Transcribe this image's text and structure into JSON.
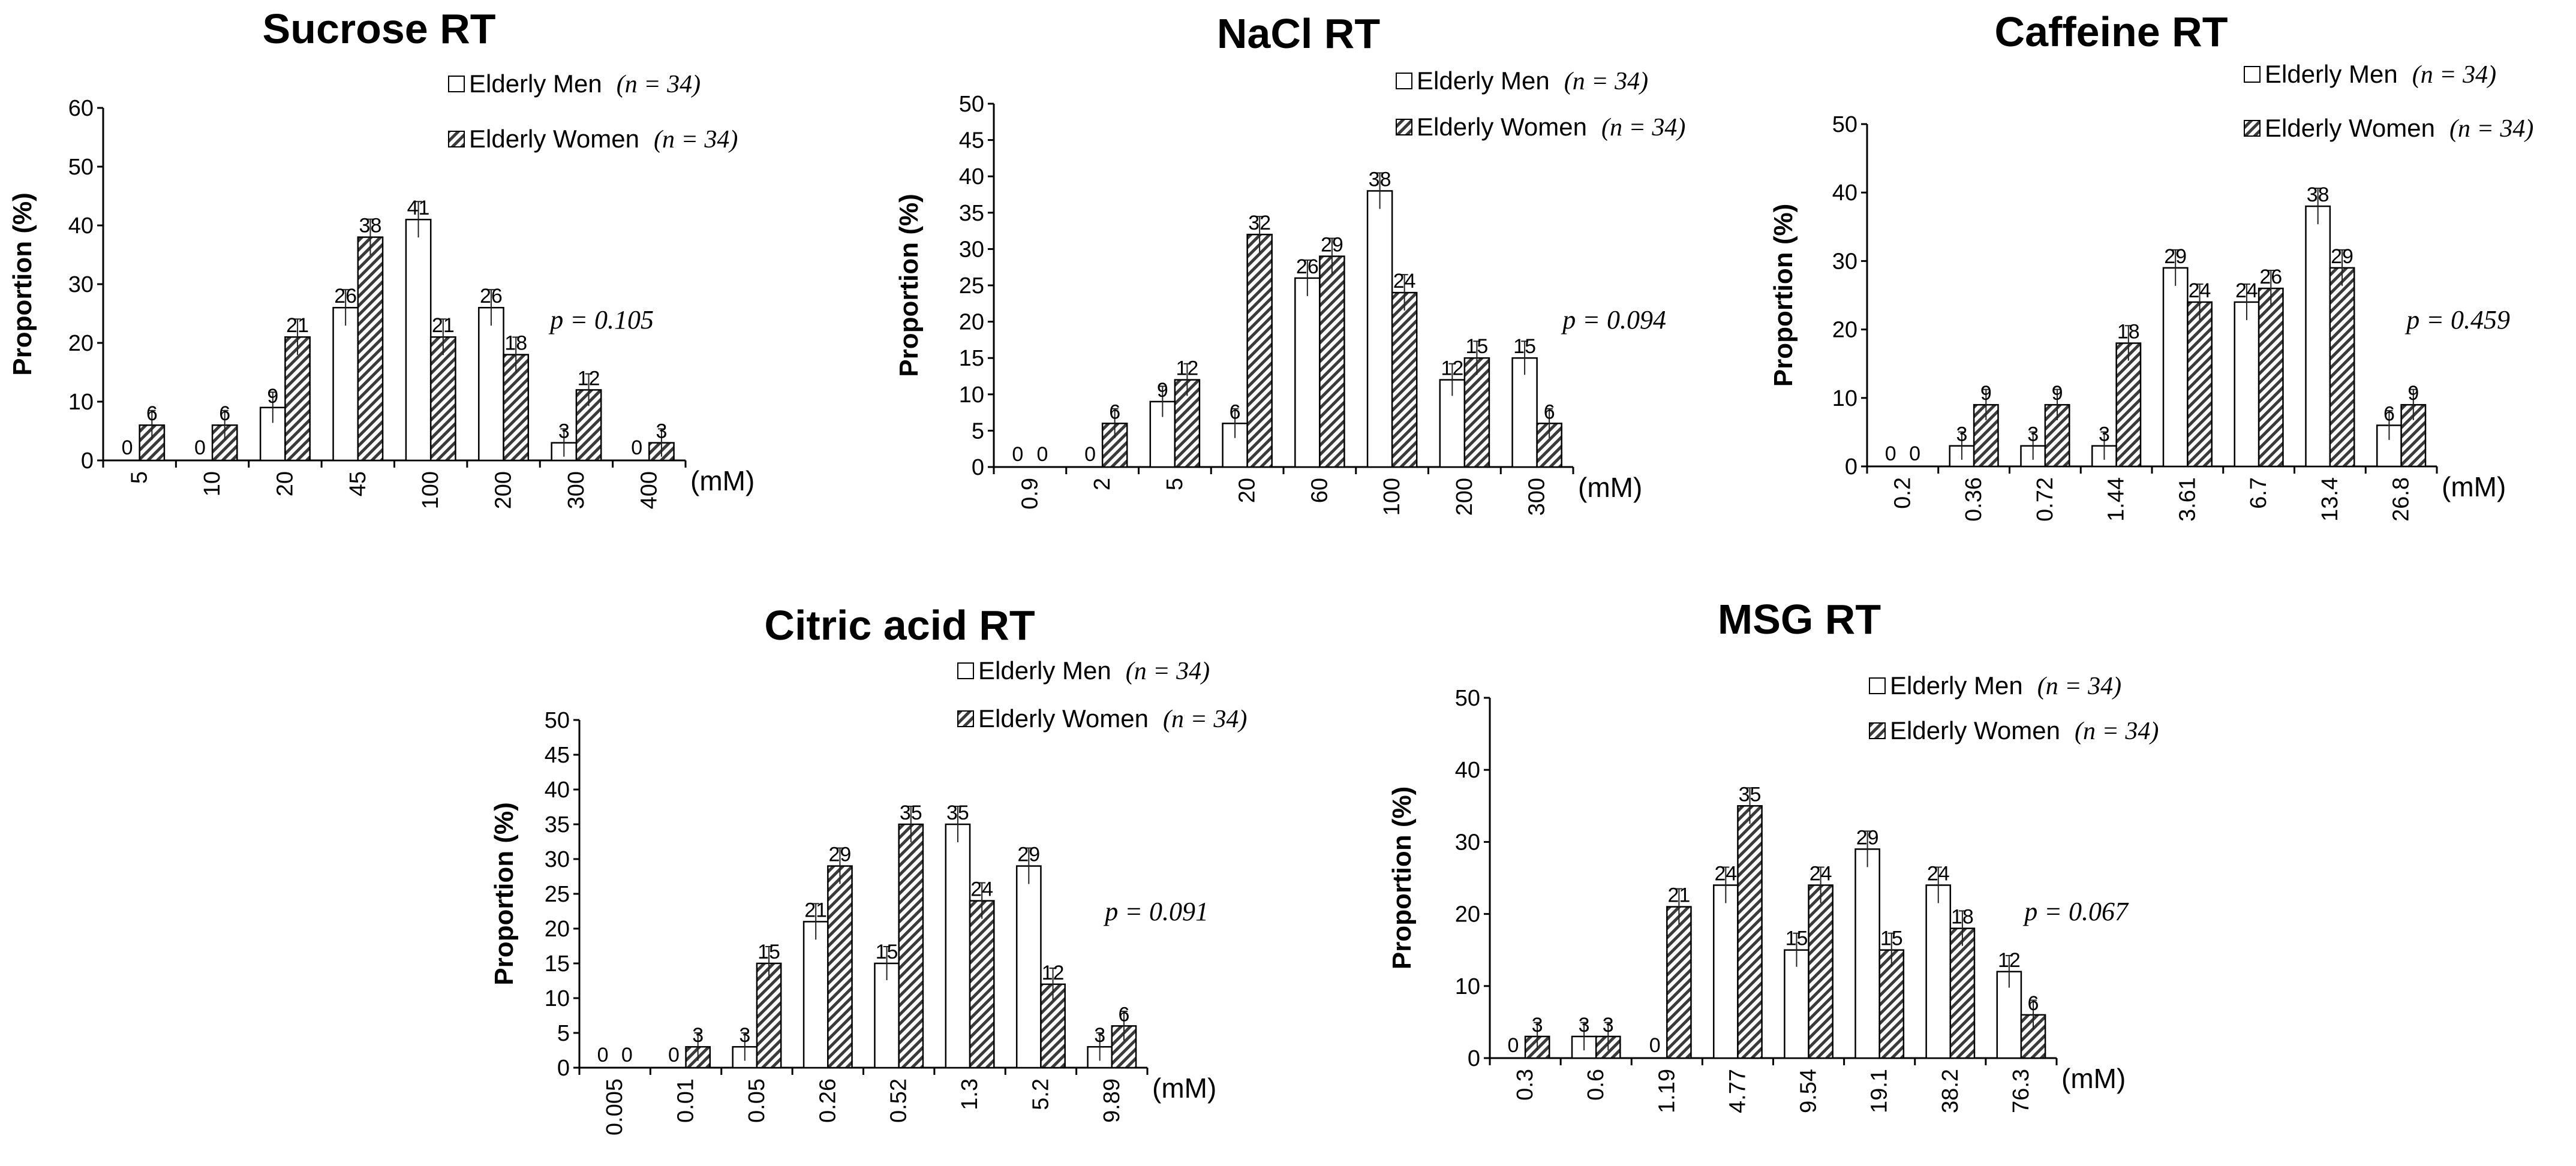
{
  "chart_data": [
    {
      "type": "bar",
      "title": "Sucrose RT",
      "ylabel": "Proportion (%)",
      "unit": "(mM)",
      "ylim": [
        0,
        60
      ],
      "yticks": [
        0,
        10,
        20,
        30,
        40,
        50,
        60
      ],
      "yticklabels": [
        "0",
        "10",
        "20",
        "30",
        "40",
        "50",
        "60"
      ],
      "categories": [
        "5",
        "10",
        "20",
        "45",
        "100",
        "200",
        "300",
        "400"
      ],
      "series": [
        {
          "name": "Elderly Men",
          "n": "(n = 34)",
          "values": [
            0,
            0,
            9,
            26,
            41,
            26,
            3,
            0
          ],
          "labels": [
            "0",
            "0",
            "9",
            "26",
            "41",
            "26",
            "3",
            "0"
          ]
        },
        {
          "name": "Elderly Women",
          "n": "(n = 34)",
          "values": [
            6,
            6,
            21,
            38,
            21,
            18,
            12,
            3
          ],
          "labels": [
            "6",
            "6",
            "21",
            "38",
            "21",
            "18",
            "12",
            "3"
          ]
        }
      ],
      "p_value": "p = 0.105"
    },
    {
      "type": "bar",
      "title": "NaCl RT",
      "ylabel": "Proportion (%)",
      "unit": "(mM)",
      "ylim": [
        0,
        50
      ],
      "yticks": [
        0,
        5,
        10,
        15,
        20,
        25,
        30,
        35,
        40,
        45,
        50
      ],
      "yticklabels": [
        "0",
        "5",
        "10",
        "15",
        "20",
        "25",
        "30",
        "35",
        "40",
        "45",
        "50"
      ],
      "categories": [
        "0.9",
        "2",
        "5",
        "20",
        "60",
        "100",
        "200",
        "300"
      ],
      "series": [
        {
          "name": "Elderly Men",
          "n": "(n = 34)",
          "values": [
            0,
            0,
            9,
            6,
            26,
            38,
            12,
            15
          ],
          "labels": [
            "0",
            "0",
            "9",
            "6",
            "26",
            "38",
            "12",
            "15"
          ]
        },
        {
          "name": "Elderly Women",
          "n": "(n = 34)",
          "values": [
            0,
            6,
            12,
            32,
            29,
            24,
            15,
            6
          ],
          "labels": [
            "0",
            "6",
            "12",
            "32",
            "29",
            "24",
            "15",
            "6"
          ]
        }
      ],
      "p_value": "p = 0.094"
    },
    {
      "type": "bar",
      "title": "Caffeine RT",
      "ylabel": "Proportion (%)",
      "unit": "(mM)",
      "ylim": [
        0,
        50
      ],
      "yticks": [
        0,
        10,
        20,
        30,
        40,
        50
      ],
      "yticklabels": [
        "0",
        "10",
        "20",
        "30",
        "40",
        "50"
      ],
      "categories": [
        "0.2",
        "0.36",
        "0.72",
        "1.44",
        "3.61",
        "6.7",
        "13.4",
        "26.8"
      ],
      "series": [
        {
          "name": "Elderly Men",
          "n": "(n = 34)",
          "values": [
            0,
            3,
            3,
            3,
            29,
            24,
            38,
            6
          ],
          "labels": [
            "0",
            "3",
            "3",
            "3",
            "29",
            "24",
            "38",
            "6"
          ]
        },
        {
          "name": "Elderly Women",
          "n": "(n = 34)",
          "values": [
            0,
            9,
            9,
            18,
            24,
            26,
            29,
            9
          ],
          "labels": [
            "0",
            "9",
            "9",
            "18",
            "24",
            "26",
            "29",
            "9"
          ]
        }
      ],
      "p_value": "p = 0.459"
    },
    {
      "type": "bar",
      "title": "Citric acid RT",
      "ylabel": "Proportion (%)",
      "unit": "(mM)",
      "ylim": [
        0,
        50
      ],
      "yticks": [
        0,
        5,
        10,
        15,
        20,
        25,
        30,
        35,
        40,
        45,
        50
      ],
      "yticklabels": [
        "0",
        "5",
        "10",
        "15",
        "20",
        "25",
        "30",
        "35",
        "40",
        "45",
        "50"
      ],
      "categories": [
        "0.005",
        "0.01",
        "0.05",
        "0.26",
        "0.52",
        "1.3",
        "5.2",
        "9.89"
      ],
      "series": [
        {
          "name": "Elderly Men",
          "n": "(n = 34)",
          "values": [
            0,
            0,
            3,
            21,
            15,
            35,
            29,
            3
          ],
          "labels": [
            "0",
            "0",
            "3",
            "21",
            "15",
            "35",
            "29",
            "3"
          ]
        },
        {
          "name": "Elderly Women",
          "n": "(n = 34)",
          "values": [
            0,
            3,
            15,
            29,
            35,
            24,
            12,
            6
          ],
          "labels": [
            "0",
            "3",
            "15",
            "29",
            "35",
            "24",
            "12",
            "6"
          ]
        }
      ],
      "p_value": "p = 0.091"
    },
    {
      "type": "bar",
      "title": "MSG RT",
      "ylabel": "Proportion (%)",
      "unit": "(mM)",
      "ylim": [
        0,
        50
      ],
      "yticks": [
        0,
        10,
        20,
        30,
        40,
        50
      ],
      "yticklabels": [
        "0",
        "10",
        "20",
        "30",
        "40",
        "50"
      ],
      "categories": [
        "0.3",
        "0.6",
        "1.19",
        "4.77",
        "9.54",
        "19.1",
        "38.2",
        "76.3"
      ],
      "series": [
        {
          "name": "Elderly Men",
          "n": "(n = 34)",
          "values": [
            0,
            3,
            0,
            24,
            15,
            29,
            24,
            12
          ],
          "labels": [
            "0",
            "3",
            "0",
            "24",
            "15",
            "29",
            "24",
            "12"
          ]
        },
        {
          "name": "Elderly Women",
          "n": "(n = 34)",
          "values": [
            3,
            3,
            21,
            35,
            24,
            15,
            18,
            6
          ],
          "labels": [
            "3",
            "3",
            "21",
            "35",
            "24",
            "15",
            "18",
            "6"
          ]
        }
      ],
      "p_value": "p = 0.067"
    }
  ]
}
